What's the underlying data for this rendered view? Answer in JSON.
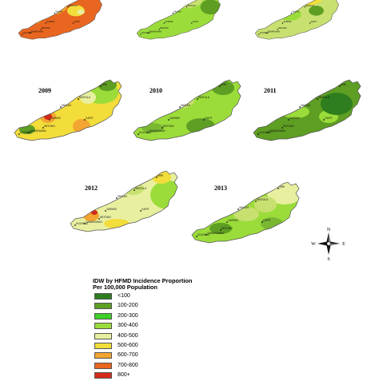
{
  "figure": {
    "legend": {
      "title_line1": "IDW by HFMD Incidence Proportion",
      "title_line2": "Per 100,000 Population",
      "classes": [
        {
          "label": "<100",
          "color": "#2e7d1e"
        },
        {
          "label": "100-200",
          "color": "#5e9e23"
        },
        {
          "label": "200-300",
          "color": "#3fcf2a"
        },
        {
          "label": "300-400",
          "color": "#9bdc3a"
        },
        {
          "label": "400-500",
          "color": "#e8f0a0"
        },
        {
          "label": "500-600",
          "color": "#f2dd3a"
        },
        {
          "label": "600-700",
          "color": "#f2a530"
        },
        {
          "label": "700-800",
          "color": "#e8661f"
        },
        {
          "label": "800+",
          "color": "#d42a1a"
        }
      ]
    },
    "compass": {
      "n": "N",
      "s": "S",
      "e": "E",
      "w": "W"
    },
    "towns": {
      "miri": "MIRI",
      "bintulu": "BINTULU",
      "mukah": "MUKAH",
      "kapit": "KAPIT",
      "sarikei": "SARIKEI",
      "betong": "BETONG",
      "samarahan": "SAMARAHAN",
      "kuching": "KUCHING"
    },
    "maps": [
      {
        "year": "",
        "base": "#e8661f",
        "blobs": [
          {
            "cx": 36,
            "cy": 8,
            "rx": 24,
            "ry": 16,
            "fill": "#d42a1a"
          },
          {
            "cx": 60,
            "cy": 22,
            "rx": 22,
            "ry": 14,
            "fill": "#f2a530"
          },
          {
            "cx": 96,
            "cy": 30,
            "rx": 14,
            "ry": 9,
            "fill": "#f2dd3a"
          },
          {
            "cx": 104,
            "cy": 32,
            "rx": 6,
            "ry": 4,
            "fill": "#e8f0a0"
          },
          {
            "cx": 22,
            "cy": 44,
            "rx": 20,
            "ry": 8,
            "fill": "#f2a530"
          }
        ]
      },
      {
        "year": "",
        "base": "#9bdc3a",
        "blobs": [
          {
            "cx": 80,
            "cy": 12,
            "rx": 30,
            "ry": 14,
            "fill": "#c8e070"
          },
          {
            "cx": 40,
            "cy": 36,
            "rx": 16,
            "ry": 8,
            "fill": "#5e9e23"
          },
          {
            "cx": 122,
            "cy": 24,
            "rx": 16,
            "ry": 12,
            "fill": "#5e9e23"
          }
        ]
      },
      {
        "year": "",
        "base": "#c8e070",
        "blobs": [
          {
            "cx": 84,
            "cy": 10,
            "rx": 28,
            "ry": 12,
            "fill": "#f2dd3a"
          },
          {
            "cx": 98,
            "cy": 4,
            "rx": 8,
            "ry": 5,
            "fill": "#d42a1a"
          },
          {
            "cx": 60,
            "cy": 36,
            "rx": 18,
            "ry": 10,
            "fill": "#9bdc3a"
          },
          {
            "cx": 102,
            "cy": 30,
            "rx": 12,
            "ry": 8,
            "fill": "#5e9e23"
          }
        ]
      },
      {
        "year": "2009",
        "base": "#f2dd3a",
        "blobs": [
          {
            "cx": 112,
            "cy": 16,
            "rx": 22,
            "ry": 14,
            "fill": "#9bdc3a"
          },
          {
            "cx": 120,
            "cy": 6,
            "rx": 12,
            "ry": 8,
            "fill": "#5e9e23"
          },
          {
            "cx": 96,
            "cy": 22,
            "rx": 10,
            "ry": 8,
            "fill": "#e8f0a0"
          },
          {
            "cx": 46,
            "cy": 46,
            "rx": 10,
            "ry": 8,
            "fill": "#f2a530"
          },
          {
            "cx": 46,
            "cy": 46,
            "rx": 5,
            "ry": 4,
            "fill": "#d42a1a"
          },
          {
            "cx": 88,
            "cy": 58,
            "rx": 11,
            "ry": 9,
            "fill": "#f2a530"
          },
          {
            "cx": 20,
            "cy": 62,
            "rx": 10,
            "ry": 6,
            "fill": "#5e9e23"
          }
        ]
      },
      {
        "year": "2010",
        "base": "#9bdc3a",
        "blobs": [
          {
            "cx": 60,
            "cy": 26,
            "rx": 20,
            "ry": 10,
            "fill": "#c8e070"
          },
          {
            "cx": 116,
            "cy": 10,
            "rx": 14,
            "ry": 9,
            "fill": "#5e9e23"
          },
          {
            "cx": 88,
            "cy": 58,
            "rx": 18,
            "ry": 10,
            "fill": "#5e9e23"
          },
          {
            "cx": 28,
            "cy": 60,
            "rx": 14,
            "ry": 6,
            "fill": "#7ab832"
          }
        ]
      },
      {
        "year": "2011",
        "base": "#5e9e23",
        "blobs": [
          {
            "cx": 56,
            "cy": 40,
            "rx": 18,
            "ry": 8,
            "fill": "#9bdc3a"
          },
          {
            "cx": 98,
            "cy": 46,
            "rx": 12,
            "ry": 8,
            "fill": "#9bdc3a"
          },
          {
            "cx": 108,
            "cy": 30,
            "rx": 20,
            "ry": 14,
            "fill": "#2e7d1e"
          }
        ]
      },
      {
        "year": "2012",
        "base": "#e8f0a0",
        "blobs": [
          {
            "cx": 126,
            "cy": 30,
            "rx": 22,
            "ry": 18,
            "fill": "#9bdc3a"
          },
          {
            "cx": 118,
            "cy": 8,
            "rx": 12,
            "ry": 8,
            "fill": "#f2dd3a"
          },
          {
            "cx": 82,
            "cy": 22,
            "rx": 14,
            "ry": 8,
            "fill": "#c8e070"
          },
          {
            "cx": 30,
            "cy": 56,
            "rx": 10,
            "ry": 7,
            "fill": "#f2a530"
          },
          {
            "cx": 34,
            "cy": 52,
            "rx": 4,
            "ry": 3,
            "fill": "#d42a1a"
          },
          {
            "cx": 62,
            "cy": 66,
            "rx": 16,
            "ry": 6,
            "fill": "#f2dd3a"
          }
        ]
      },
      {
        "year": "2013",
        "base": "#9bdc3a",
        "blobs": [
          {
            "cx": 120,
            "cy": 14,
            "rx": 22,
            "ry": 14,
            "fill": "#e8f0a0"
          },
          {
            "cx": 96,
            "cy": 28,
            "rx": 14,
            "ry": 10,
            "fill": "#c8e070"
          },
          {
            "cx": 72,
            "cy": 40,
            "rx": 16,
            "ry": 9,
            "fill": "#c8e070"
          },
          {
            "cx": 40,
            "cy": 58,
            "rx": 14,
            "ry": 7,
            "fill": "#5e9e23"
          },
          {
            "cx": 104,
            "cy": 52,
            "rx": 14,
            "ry": 8,
            "fill": "#7ab832"
          }
        ]
      }
    ]
  }
}
